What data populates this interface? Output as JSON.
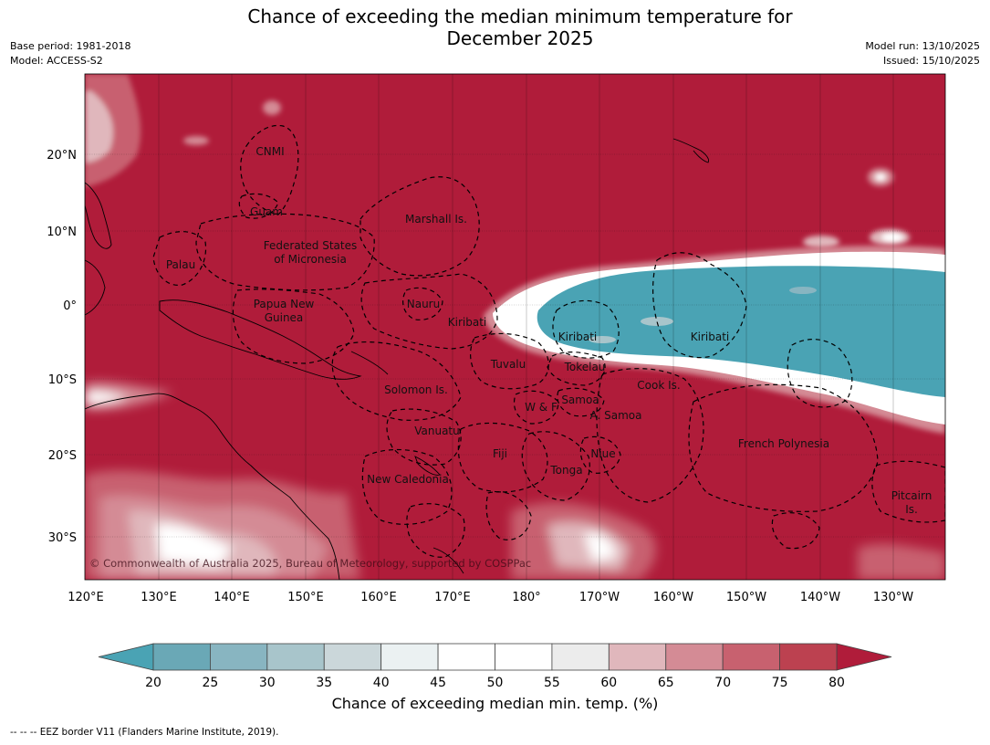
{
  "title": {
    "line1": "Chance of exceeding the median minimum temperature for",
    "line2": "December 2025"
  },
  "meta": {
    "base_period": "Base period: 1981-2018",
    "model": "Model: ACCESS-S2",
    "model_run": "Model run: 13/10/2025",
    "issued": "Issued: 15/10/2025"
  },
  "map": {
    "lat_labels": [
      "20°N",
      "10°N",
      "0°",
      "10°S",
      "20°S",
      "30°S"
    ],
    "lon_labels": [
      "120°E",
      "130°E",
      "140°E",
      "150°E",
      "160°E",
      "170°E",
      "180°",
      "170°W",
      "160°W",
      "150°W",
      "140°W",
      "130°W"
    ],
    "regions": [
      "CNMI",
      "Guam",
      "Marshall Is.",
      "Federated States",
      "of Micronesia",
      "Palau",
      "Papua New",
      "Guinea",
      "Nauru",
      "Kiribati",
      "Kiribati",
      "Kiribati",
      "Tuvalu",
      "Tokelau",
      "Cook Is.",
      "Solomon Is.",
      "W & F",
      "Samoa",
      "A. Samoa",
      "Vanuatu",
      "Fiji",
      "Niue",
      "Tonga",
      "New Caledonia",
      "French Polynesia",
      "Pitcairn",
      "Is."
    ],
    "copyright": "© Commonwealth of Australia 2025, Bureau of Meteorology, supported by COSPPac",
    "colors": {
      "above_80": "#b01c3a",
      "cool_tongue": "#4aa3b4",
      "white_band": "#ffffff"
    }
  },
  "colorbar": {
    "ticks": [
      "20",
      "25",
      "30",
      "35",
      "40",
      "45",
      "50",
      "55",
      "60",
      "65",
      "70",
      "75",
      "80"
    ],
    "colors": [
      "#6aa8b6",
      "#88b5c1",
      "#a8c5cb",
      "#cbd7da",
      "#ebf1f2",
      "#ffffff",
      "#ffffff",
      "#ececec",
      "#e0b7bc",
      "#d48b95",
      "#c8616f",
      "#bc4150"
    ],
    "low_extend_color": "#4aa3b4",
    "high_extend_color": "#b01c3a",
    "label": "Chance of exceeding median min. temp. (%)"
  },
  "footer": {
    "eez_note": "--  --  -- EEZ border V11 (Flanders Marine Institute, 2019)."
  }
}
